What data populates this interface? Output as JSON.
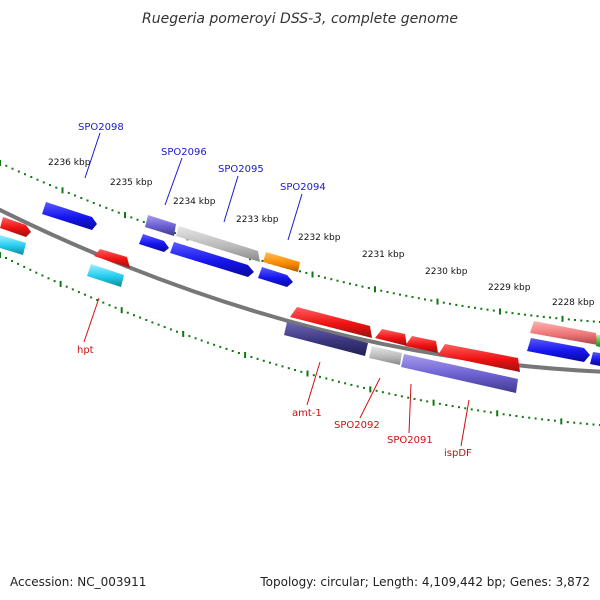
{
  "title": "Ruegeria pomeroyi DSS-3, complete genome",
  "footer": {
    "accession": "Accession: NC_003911",
    "topology": "Topology: circular; Length: 4,109,442 bp; Genes: 3,872"
  },
  "kbp_labels": [
    "2236 kbp",
    "2235 kbp",
    "2234 kbp",
    "2233 kbp",
    "2232 kbp",
    "2231 kbp",
    "2230 kbp",
    "2229 kbp",
    "2228 kbp"
  ],
  "forward_gene_labels": [
    "SPO2098",
    "SPO2096",
    "SPO2095",
    "SPO2094"
  ],
  "reverse_gene_labels": [
    "hpt",
    "amt-1",
    "SPO2092",
    "SPO2091",
    "ispDF"
  ],
  "colors": {
    "forward_label": "#1a1acc",
    "reverse_label": "#cc1111",
    "tick": "#117711",
    "genome_line": "#888888",
    "gene_blue": "#1515ee",
    "gene_red": "#ee1111",
    "gene_gray": "#bbbbbb",
    "gene_purple": "#6a5fcf",
    "gene_dark_purple": "#3c3880",
    "gene_orange": "#ff8c00",
    "gene_cyan": "#22ccee",
    "gene_pink": "#ee7777",
    "gene_green": "#33cc33"
  }
}
